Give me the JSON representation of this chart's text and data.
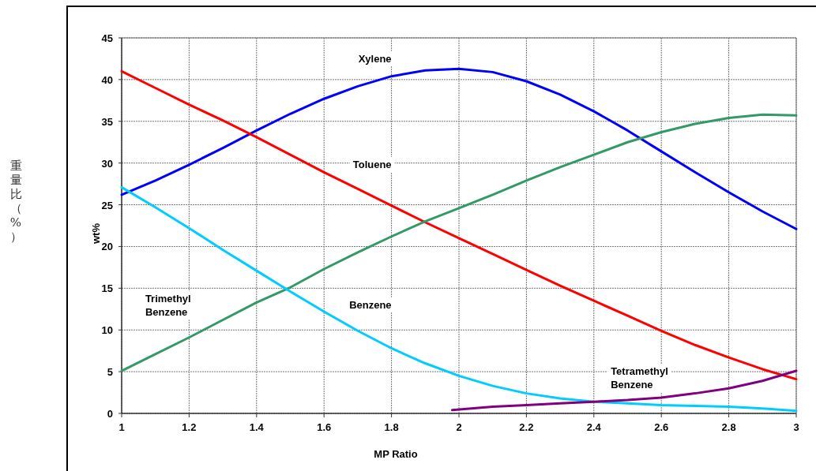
{
  "chart_data": {
    "type": "line",
    "xlabel": "MP Ratio",
    "ylabel": "wt%",
    "annotations": [
      "重量比（%）"
    ],
    "xlim": [
      1,
      3
    ],
    "xticks": [
      1,
      1.2,
      1.4,
      1.6,
      1.8,
      2,
      2.2,
      2.4,
      2.6,
      2.8,
      3
    ],
    "ylim": [
      0,
      45
    ],
    "yticks": [
      0,
      5,
      10,
      15,
      20,
      25,
      30,
      35,
      40,
      45
    ],
    "grid": true,
    "marker": "none",
    "line_style": "solid",
    "x": [
      1,
      1.1,
      1.2,
      1.3,
      1.4,
      1.5,
      1.6,
      1.7,
      1.8,
      1.9,
      2,
      2.1,
      2.2,
      2.3,
      2.4,
      2.5,
      2.6,
      2.7,
      2.8,
      2.9,
      3
    ],
    "series": [
      {
        "name": "Xylene",
        "color": "#0000ff",
        "values": [
          26.2,
          27.9,
          29.8,
          31.8,
          33.9,
          35.9,
          37.7,
          39.2,
          40.4,
          41.1,
          41.3,
          40.9,
          39.8,
          38.2,
          36.2,
          33.9,
          31.4,
          28.9,
          26.5,
          24.2,
          22.1
        ]
      },
      {
        "name": "Toluene",
        "color": "#ff0000",
        "values": [
          41,
          39,
          37,
          35.1,
          33.1,
          31,
          28.9,
          26.9,
          24.9,
          22.9,
          21,
          19.1,
          17.2,
          15.3,
          13.5,
          11.7,
          9.9,
          8.2,
          6.7,
          5.3,
          4.1
        ]
      },
      {
        "name": "Trimethyl Benzene",
        "color": "#339966",
        "values": [
          5.1,
          7.1,
          9.1,
          11.2,
          13.3,
          15.1,
          17.3,
          19.3,
          21.2,
          23,
          24.6,
          26.2,
          27.9,
          29.5,
          31,
          32.5,
          33.7,
          34.7,
          35.4,
          35.8,
          35.7
        ]
      },
      {
        "name": "Benzene",
        "color": "#00ccff",
        "values": [
          27.1,
          24.7,
          22.2,
          19.6,
          17.1,
          14.6,
          12.2,
          9.9,
          7.8,
          6,
          4.5,
          3.3,
          2.4,
          1.8,
          1.4,
          1.2,
          1,
          0.9,
          0.8,
          0.6,
          0.3
        ]
      },
      {
        "name": "Tetramethyl Benzene",
        "color": "#800080",
        "x": [
          1.98,
          2.1,
          2.2,
          2.3,
          2.4,
          2.5,
          2.6,
          2.7,
          2.8,
          2.9,
          3
        ],
        "values": [
          0.4,
          0.8,
          1,
          1.2,
          1.4,
          1.6,
          1.9,
          2.4,
          3,
          3.9,
          5.1
        ]
      }
    ]
  }
}
